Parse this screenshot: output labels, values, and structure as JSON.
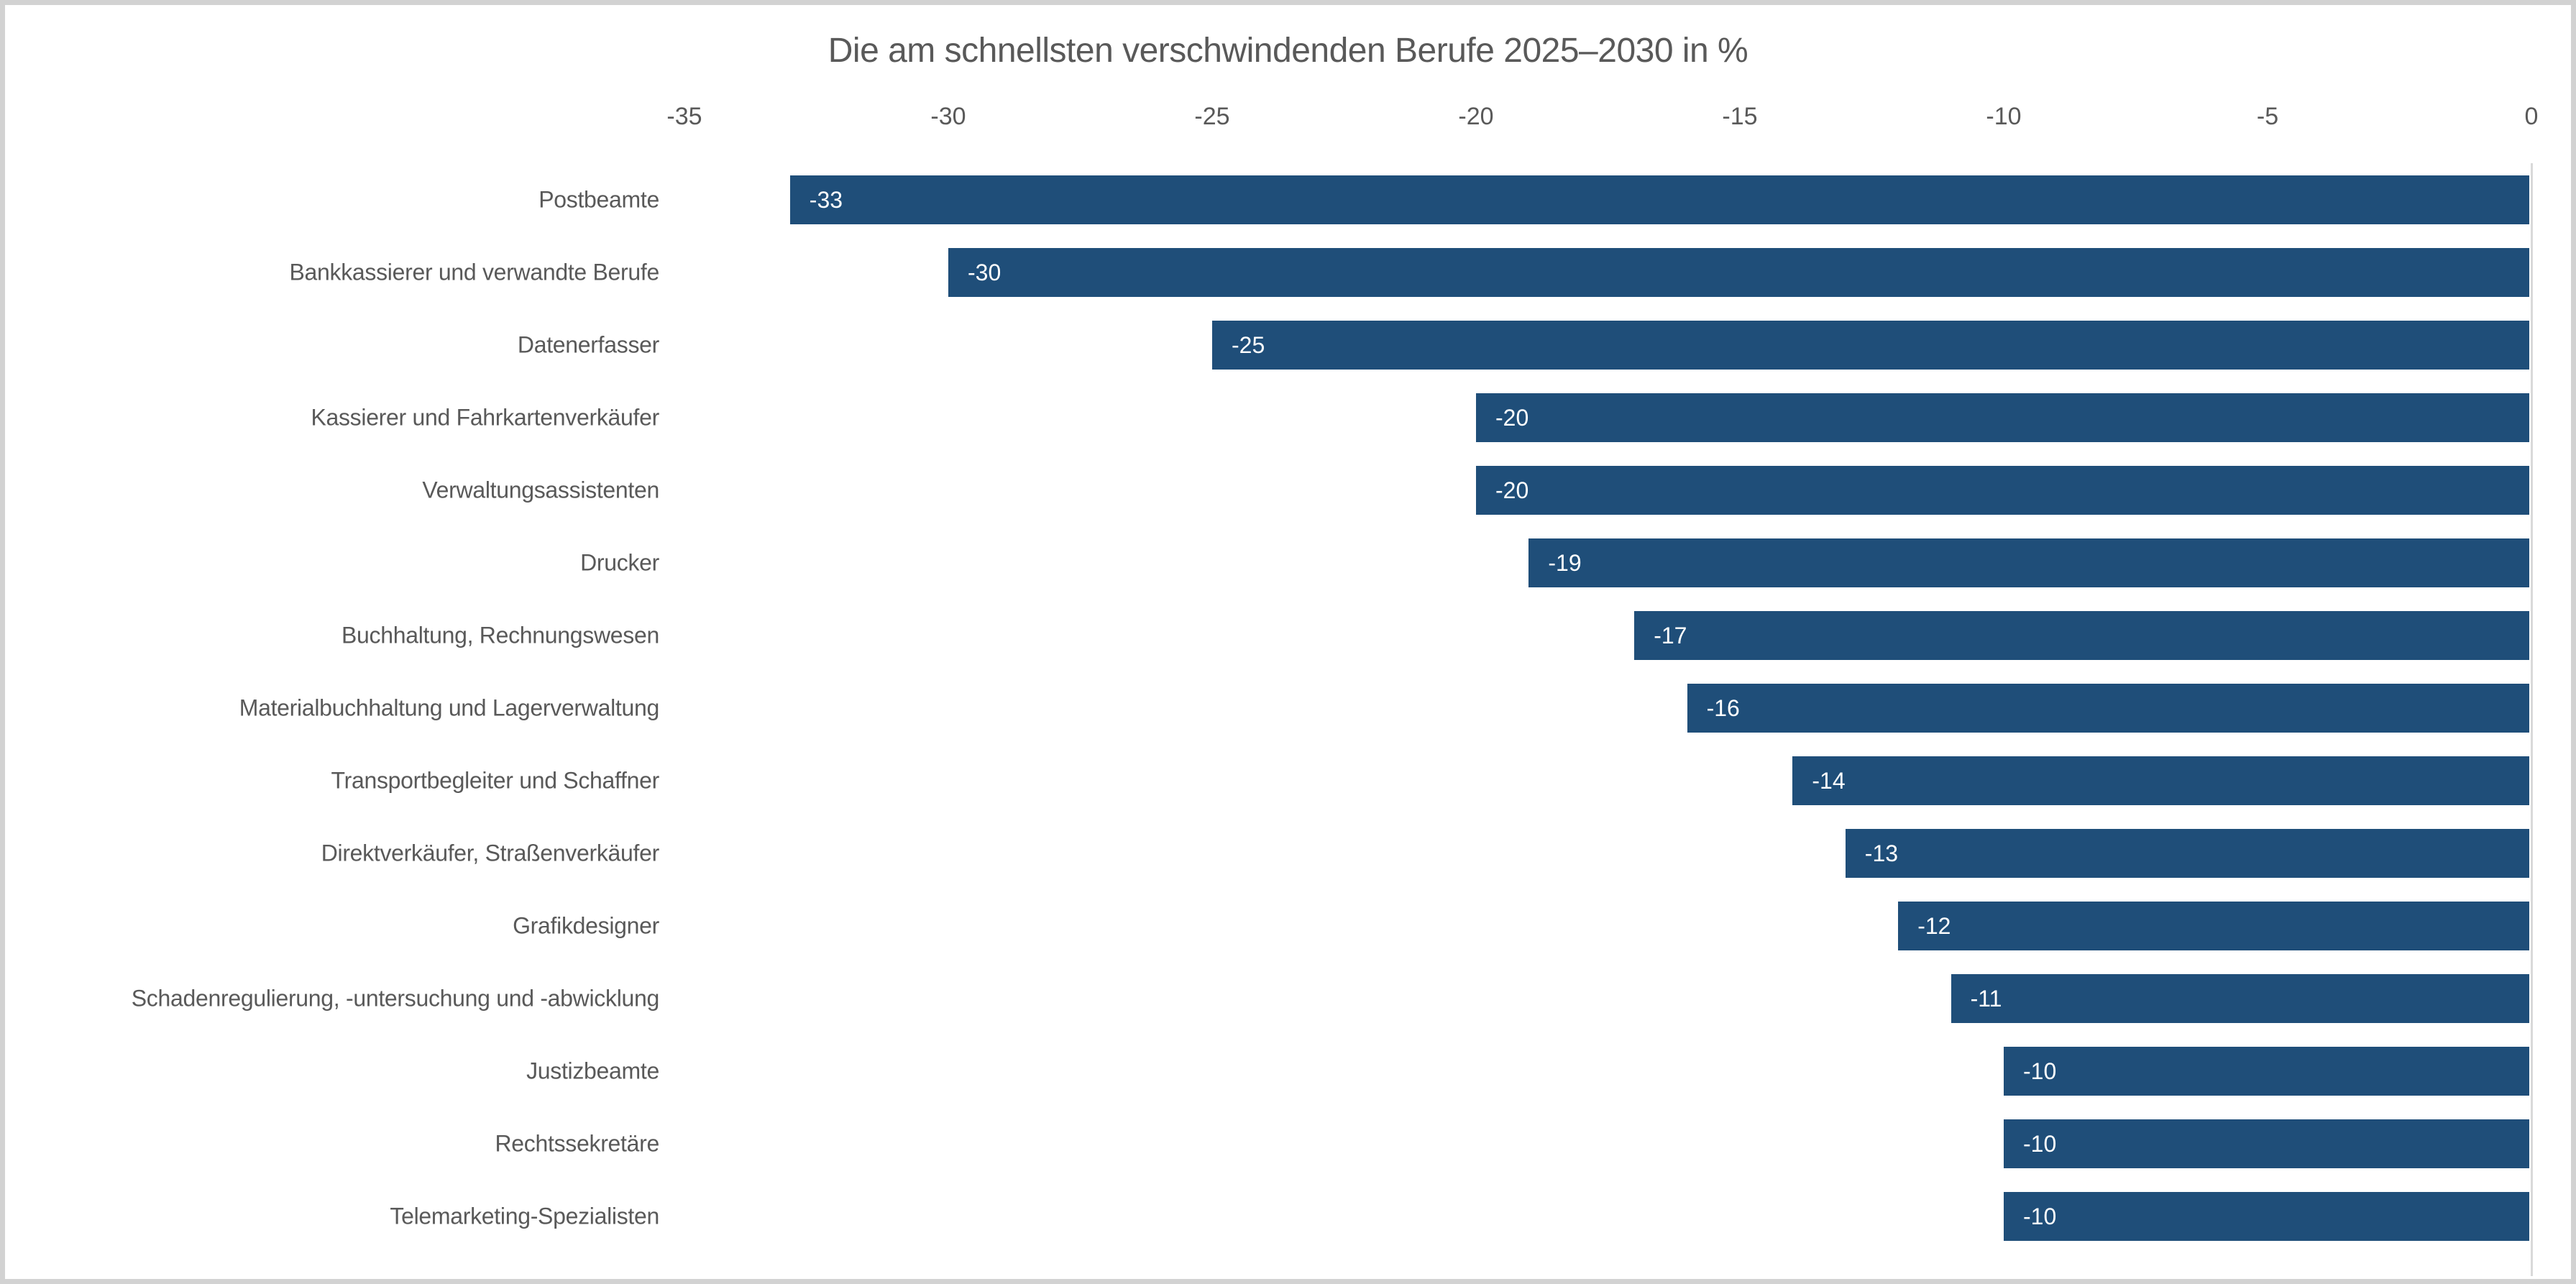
{
  "title": "Die am schnellsten verschwindenden Berufe 2025–2030 in %",
  "chart_data": {
    "type": "bar",
    "orientation": "horizontal",
    "title": "Die am schnellsten verschwindenden Berufe 2025–2030 in %",
    "categories": [
      "Postbeamte",
      "Bankkassierer und verwandte Berufe",
      "Datenerfasser",
      "Kassierer und Fahrkartenverkäufer",
      "Verwaltungsassistenten",
      "Drucker",
      "Buchhaltung, Rechnungswesen",
      "Materialbuchhaltung und Lagerverwaltung",
      "Transportbegleiter und Schaffner",
      "Direktverkäufer, Straßenverkäufer",
      "Grafikdesigner",
      "Schadenregulierung, -untersuchung und -abwicklung",
      "Justizbeamte",
      "Rechtssekretäre",
      "Telemarketing-Spezialisten"
    ],
    "values": [
      -33,
      -30,
      -25,
      -20,
      -20,
      -19,
      -17,
      -16,
      -14,
      -13,
      -12,
      -11,
      -10,
      -10,
      -10
    ],
    "xlim": [
      -35,
      0
    ],
    "x_ticks": [
      -35,
      -30,
      -25,
      -20,
      -15,
      -10,
      -5,
      0
    ],
    "xlabel": "",
    "ylabel": "",
    "grid": false,
    "legend": "none",
    "value_labels_position": "inside-left",
    "colors": {
      "bar": "#1F4E79",
      "value_label": "#FFFFFF",
      "text": "#595959",
      "axis_line": "#D9D9D9",
      "frame_border": "#D2D2D2",
      "background": "#FFFFFF"
    }
  }
}
